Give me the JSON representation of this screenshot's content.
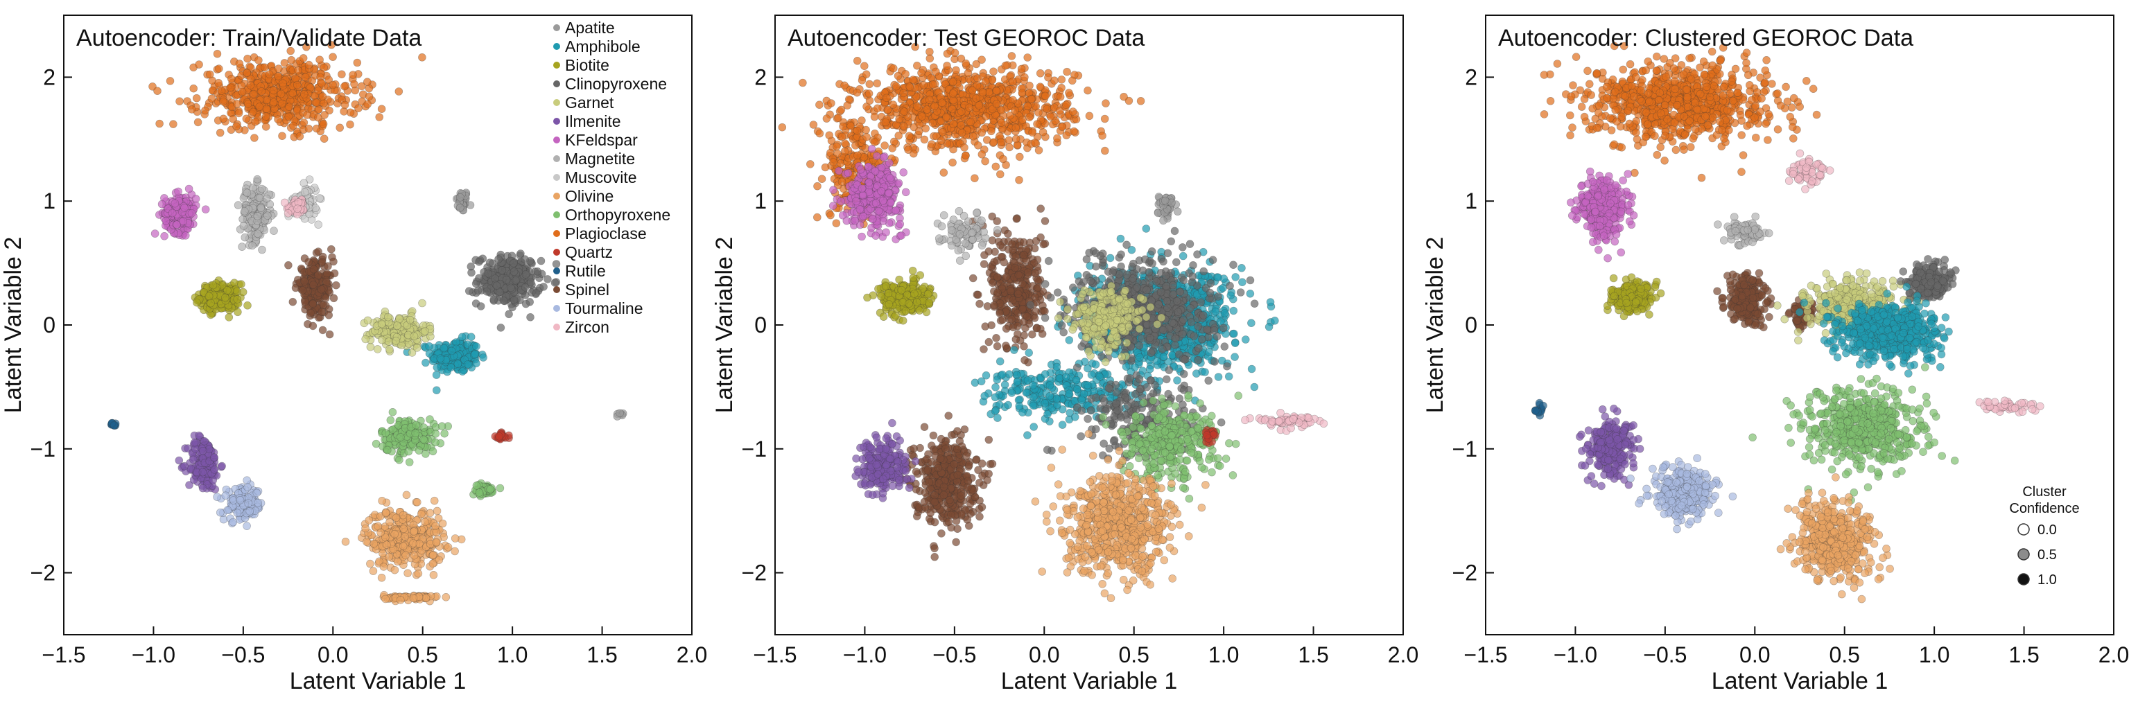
{
  "chart_data": [
    {
      "type": "scatter",
      "title": "Autoencoder: Train/Validate Data",
      "xlabel": "Latent Variable 1",
      "ylabel": "Latent Variable 2",
      "xlim": [
        -1.5,
        2.0
      ],
      "ylim": [
        -2.5,
        2.5
      ],
      "xticks": [
        "−1.5",
        "−1.0",
        "−0.5",
        "0.0",
        "0.5",
        "1.0",
        "1.5",
        "2.0"
      ],
      "yticks": [
        "−2",
        "−1",
        "0",
        "1",
        "2"
      ],
      "legend_position": "top-right",
      "series": [
        {
          "name": "Apatite",
          "color": "#9a9a9a",
          "clusters": [
            [
              0.72,
              1.0,
              0.03,
              0.08,
              40
            ],
            [
              1.6,
              -0.73,
              0.02,
              0.02,
              6
            ]
          ]
        },
        {
          "name": "Amphibole",
          "color": "#1f9bb0",
          "clusters": [
            [
              0.68,
              -0.25,
              0.12,
              0.12,
              220
            ]
          ]
        },
        {
          "name": "Biotite",
          "color": "#a6a420",
          "clusters": [
            [
              -0.63,
              0.22,
              0.1,
              0.1,
              220
            ]
          ]
        },
        {
          "name": "Clinopyroxene",
          "color": "#666666",
          "clusters": [
            [
              0.98,
              0.36,
              0.16,
              0.18,
              260
            ]
          ]
        },
        {
          "name": "Garnet",
          "color": "#c8cc7c",
          "clusters": [
            [
              0.37,
              -0.05,
              0.14,
              0.12,
              200
            ]
          ]
        },
        {
          "name": "Ilmenite",
          "color": "#7c55a8",
          "clusters": [
            [
              -0.72,
              -1.12,
              0.08,
              0.2,
              150
            ]
          ]
        },
        {
          "name": "KFeldspar",
          "color": "#c464c0",
          "clusters": [
            [
              -0.85,
              0.9,
              0.08,
              0.14,
              200
            ]
          ]
        },
        {
          "name": "Magnetite",
          "color": "#b0b0b0",
          "clusters": [
            [
              -0.43,
              0.9,
              0.08,
              0.2,
              150
            ]
          ]
        },
        {
          "name": "Muscovite",
          "color": "#c8c8c8",
          "clusters": [
            [
              -0.15,
              1.0,
              0.06,
              0.12,
              80
            ]
          ]
        },
        {
          "name": "Olivine",
          "color": "#e9a463",
          "clusters": [
            [
              0.4,
              -1.72,
              0.2,
              0.22,
              330
            ],
            [
              0.44,
              -2.2,
              0.14,
              0.02,
              60
            ]
          ]
        },
        {
          "name": "Orthopyroxene",
          "color": "#7fbf6f",
          "clusters": [
            [
              0.42,
              -0.9,
              0.14,
              0.13,
              160
            ],
            [
              0.84,
              -1.33,
              0.06,
              0.04,
              60
            ]
          ]
        },
        {
          "name": "Plagioclase",
          "color": "#e06d1b",
          "clusters": [
            [
              -0.3,
              1.86,
              0.4,
              0.25,
              560
            ]
          ]
        },
        {
          "name": "Quartz",
          "color": "#c0392b",
          "clusters": [
            [
              0.94,
              -0.9,
              0.03,
              0.03,
              20
            ]
          ]
        },
        {
          "name": "Rutile",
          "color": "#1f5f8b",
          "clusters": [
            [
              -1.22,
              -0.8,
              0.02,
              0.02,
              10
            ]
          ]
        },
        {
          "name": "Spinel",
          "color": "#7a4a33",
          "clusters": [
            [
              -0.1,
              0.3,
              0.09,
              0.2,
              200
            ]
          ]
        },
        {
          "name": "Tourmaline",
          "color": "#a8b9e0",
          "clusters": [
            [
              -0.5,
              -1.45,
              0.1,
              0.12,
              120
            ]
          ]
        },
        {
          "name": "Zircon",
          "color": "#f0b8c4",
          "clusters": [
            [
              -0.2,
              0.95,
              0.05,
              0.06,
              40
            ]
          ]
        }
      ]
    },
    {
      "type": "scatter",
      "title": "Autoencoder: Test GEOROC Data",
      "xlabel": "Latent Variable 1",
      "ylabel": "Latent Variable 2",
      "xlim": [
        -1.5,
        2.0
      ],
      "ylim": [
        -2.5,
        2.5
      ],
      "xticks": [
        "−1.5",
        "−1.0",
        "−0.5",
        "0.0",
        "0.5",
        "1.0",
        "1.5",
        "2.0"
      ],
      "yticks": [
        "−2",
        "−1",
        "0",
        "1",
        "2"
      ],
      "series": [
        {
          "name": "Plagioclase",
          "color": "#e06d1b",
          "clusters": [
            [
              -0.45,
              1.75,
              0.55,
              0.3,
              900
            ],
            [
              -1.05,
              1.25,
              0.15,
              0.35,
              200
            ]
          ]
        },
        {
          "name": "KFeldspar",
          "color": "#c464c0",
          "clusters": [
            [
              -0.95,
              1.05,
              0.14,
              0.22,
              300
            ]
          ]
        },
        {
          "name": "Biotite",
          "color": "#a6a420",
          "clusters": [
            [
              -0.78,
              0.22,
              0.12,
              0.12,
              260
            ]
          ]
        },
        {
          "name": "Spinel",
          "color": "#7a4a33",
          "clusters": [
            [
              -0.15,
              0.3,
              0.14,
              0.45,
              320
            ],
            [
              -0.55,
              -1.25,
              0.16,
              0.32,
              380
            ]
          ]
        },
        {
          "name": "Amphibole",
          "color": "#1f9bb0",
          "clusters": [
            [
              0.65,
              0.05,
              0.35,
              0.35,
              1100
            ],
            [
              0.1,
              -0.55,
              0.4,
              0.2,
              260
            ]
          ]
        },
        {
          "name": "Clinopyroxene",
          "color": "#666666",
          "clusters": [
            [
              0.55,
              0.15,
              0.35,
              0.35,
              600
            ],
            [
              0.55,
              -0.75,
              0.3,
              0.3,
              200
            ]
          ]
        },
        {
          "name": "Garnet",
          "color": "#c8cc7c",
          "clusters": [
            [
              0.35,
              0.05,
              0.18,
              0.22,
              200
            ]
          ]
        },
        {
          "name": "Orthopyroxene",
          "color": "#7fbf6f",
          "clusters": [
            [
              0.7,
              -0.95,
              0.25,
              0.28,
              300
            ]
          ]
        },
        {
          "name": "Olivine",
          "color": "#e9a463",
          "clusters": [
            [
              0.42,
              -1.62,
              0.27,
              0.35,
              650
            ]
          ]
        },
        {
          "name": "Ilmenite",
          "color": "#7c55a8",
          "clusters": [
            [
              -0.9,
              -1.15,
              0.12,
              0.2,
              220
            ]
          ]
        },
        {
          "name": "Magnetite",
          "color": "#b0b0b0",
          "clusters": [
            [
              -0.45,
              0.75,
              0.12,
              0.15,
              80
            ]
          ]
        },
        {
          "name": "Apatite",
          "color": "#9a9a9a",
          "clusters": [
            [
              0.68,
              0.95,
              0.05,
              0.08,
              40
            ]
          ]
        },
        {
          "name": "Quartz",
          "color": "#c0392b",
          "clusters": [
            [
              0.92,
              -0.9,
              0.04,
              0.04,
              20
            ]
          ]
        },
        {
          "name": "Zircon",
          "color": "#f0b8c4",
          "clusters": [
            [
              1.35,
              -0.77,
              0.15,
              0.05,
              60
            ]
          ]
        }
      ]
    },
    {
      "type": "scatter",
      "title": "Autoencoder: Clustered GEOROC Data",
      "xlabel": "Latent Variable 1",
      "ylabel": "Latent Variable 2",
      "xlim": [
        -1.5,
        2.0
      ],
      "ylim": [
        -2.5,
        2.5
      ],
      "xticks": [
        "−1.5",
        "−1.0",
        "−0.5",
        "0.0",
        "0.5",
        "1.0",
        "1.5",
        "2.0"
      ],
      "yticks": [
        "−2",
        "−1",
        "0",
        "1",
        "2"
      ],
      "size_legend": {
        "title": [
          "Cluster",
          "Confidence"
        ],
        "levels": [
          {
            "label": "0.0",
            "color": "#ffffff"
          },
          {
            "label": "0.5",
            "color": "#8c8c8c"
          },
          {
            "label": "1.0",
            "color": "#111111"
          }
        ]
      },
      "series": [
        {
          "name": "Plagioclase",
          "color": "#e06d1b",
          "clusters": [
            [
              -0.4,
              1.8,
              0.45,
              0.28,
              850
            ]
          ]
        },
        {
          "name": "KFeldspar",
          "color": "#c464c0",
          "clusters": [
            [
              -0.85,
              0.95,
              0.12,
              0.22,
              300
            ]
          ]
        },
        {
          "name": "Biotite",
          "color": "#a6a420",
          "clusters": [
            [
              -0.68,
              0.22,
              0.1,
              0.1,
              240
            ]
          ]
        },
        {
          "name": "Spinel",
          "color": "#7a4a33",
          "clusters": [
            [
              -0.05,
              0.2,
              0.1,
              0.18,
              220
            ],
            [
              0.27,
              0.08,
              0.06,
              0.08,
              80
            ]
          ]
        },
        {
          "name": "Garnet",
          "color": "#c8cc7c",
          "clusters": [
            [
              0.55,
              0.15,
              0.22,
              0.18,
              400
            ]
          ]
        },
        {
          "name": "Clinopyroxene",
          "color": "#666666",
          "clusters": [
            [
              0.97,
              0.35,
              0.1,
              0.12,
              220
            ]
          ]
        },
        {
          "name": "Amphibole",
          "color": "#1f9bb0",
          "clusters": [
            [
              0.75,
              -0.05,
              0.25,
              0.2,
              600
            ]
          ]
        },
        {
          "name": "Orthopyroxene",
          "color": "#7fbf6f",
          "clusters": [
            [
              0.6,
              -0.85,
              0.3,
              0.3,
              520
            ]
          ]
        },
        {
          "name": "Ilmenite",
          "color": "#7c55a8",
          "clusters": [
            [
              -0.8,
              -1.0,
              0.12,
              0.2,
              260
            ]
          ]
        },
        {
          "name": "Tourmaline",
          "color": "#a8b9e0",
          "clusters": [
            [
              -0.4,
              -1.35,
              0.15,
              0.2,
              300
            ]
          ]
        },
        {
          "name": "Olivine",
          "color": "#e9a463",
          "clusters": [
            [
              0.45,
              -1.75,
              0.2,
              0.28,
              450
            ]
          ]
        },
        {
          "name": "Magnetite",
          "color": "#b0b0b0",
          "clusters": [
            [
              -0.05,
              0.75,
              0.1,
              0.08,
              80
            ]
          ]
        },
        {
          "name": "Zircon",
          "color": "#f0b8c4",
          "clusters": [
            [
              0.3,
              1.25,
              0.1,
              0.1,
              60
            ],
            [
              1.4,
              -0.65,
              0.15,
              0.05,
              40
            ]
          ]
        },
        {
          "name": "Rutile",
          "color": "#1f5f8b",
          "clusters": [
            [
              -1.2,
              -0.68,
              0.04,
              0.04,
              15
            ]
          ]
        }
      ]
    }
  ]
}
